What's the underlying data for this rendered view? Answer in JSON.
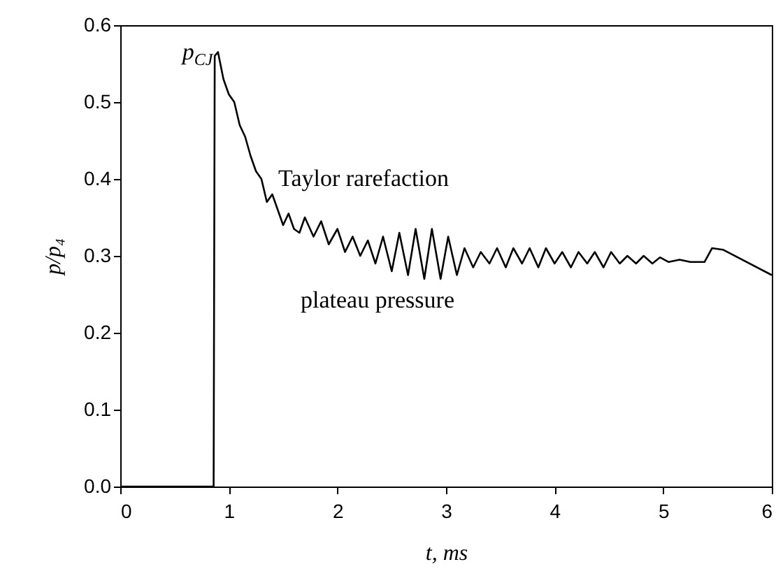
{
  "chart_data": {
    "type": "line",
    "xlabel": "t, ms",
    "ylabel": "p/p₄",
    "x": [
      0,
      0.86,
      0.87,
      0.9,
      0.95,
      1.0,
      1.05,
      1.1,
      1.15,
      1.2,
      1.25,
      1.3,
      1.35,
      1.4,
      1.45,
      1.5,
      1.55,
      1.6,
      1.65,
      1.7,
      1.78,
      1.85,
      1.92,
      2.0,
      2.07,
      2.14,
      2.21,
      2.28,
      2.35,
      2.42,
      2.5,
      2.57,
      2.65,
      2.72,
      2.8,
      2.87,
      2.95,
      3.02,
      3.1,
      3.17,
      3.25,
      3.32,
      3.4,
      3.47,
      3.55,
      3.62,
      3.7,
      3.77,
      3.85,
      3.92,
      4.0,
      4.07,
      4.15,
      4.22,
      4.3,
      4.37,
      4.45,
      4.52,
      4.6,
      4.67,
      4.75,
      4.82,
      4.9,
      4.97,
      5.05,
      5.15,
      5.25,
      5.38,
      5.45,
      5.55,
      6.0
    ],
    "series": [
      {
        "color": "#000000",
        "values": [
          0,
          0,
          0.56,
          0.565,
          0.53,
          0.51,
          0.5,
          0.47,
          0.455,
          0.43,
          0.41,
          0.4,
          0.37,
          0.38,
          0.36,
          0.34,
          0.355,
          0.335,
          0.33,
          0.35,
          0.325,
          0.345,
          0.315,
          0.335,
          0.305,
          0.325,
          0.3,
          0.32,
          0.29,
          0.325,
          0.28,
          0.33,
          0.275,
          0.335,
          0.27,
          0.335,
          0.27,
          0.325,
          0.275,
          0.31,
          0.285,
          0.305,
          0.29,
          0.31,
          0.285,
          0.31,
          0.29,
          0.31,
          0.285,
          0.31,
          0.29,
          0.305,
          0.285,
          0.305,
          0.29,
          0.305,
          0.285,
          0.305,
          0.29,
          0.3,
          0.29,
          0.3,
          0.29,
          0.298,
          0.292,
          0.295,
          0.292,
          0.292,
          0.31,
          0.308,
          0.275
        ]
      }
    ],
    "xlim": [
      0,
      6
    ],
    "xticks": [
      0,
      1,
      2,
      3,
      4,
      5,
      6
    ],
    "ylim": [
      0,
      0.6
    ],
    "yticks": [
      {
        "value": 0,
        "label": "0.0"
      },
      {
        "value": 0.1,
        "label": "0.1"
      },
      {
        "value": 0.2,
        "label": "0.2"
      },
      {
        "value": 0.3,
        "label": "0.3"
      },
      {
        "value": 0.4,
        "label": "0.4"
      },
      {
        "value": 0.5,
        "label": "0.5"
      },
      {
        "value": 0.6,
        "label": "0.6"
      }
    ],
    "grid": false,
    "line_style": "solid",
    "marker": "none",
    "annotations": [
      {
        "text": "p$_{CJ}$",
        "x": 0.9,
        "y": 0.565
      },
      "Taylor rarefaction",
      "plateau pressure"
    ]
  }
}
